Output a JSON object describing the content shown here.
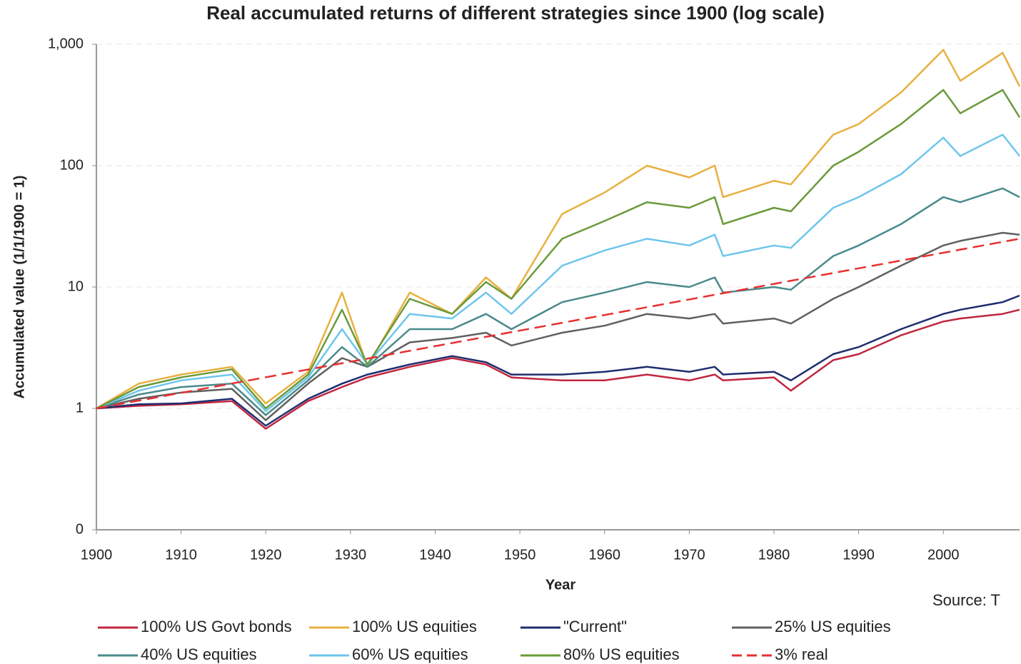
{
  "chart_data": {
    "type": "line",
    "title": "Real accumulated returns of different strategies since 1900 (log scale)",
    "x_label": "Year",
    "y_label": "Accumulated value (1/1/1900 = 1)",
    "source": "Source: T",
    "log_scale": true,
    "grid": true,
    "legend": "bottom",
    "xlim": [
      1900,
      2009
    ],
    "xticks": [
      1900,
      1910,
      1920,
      1930,
      1940,
      1950,
      1960,
      1970,
      1980,
      1990,
      2000
    ],
    "ylim": [
      0.1,
      1000
    ],
    "yticks": [
      {
        "value": 0.1,
        "label": "0"
      },
      1,
      10,
      100,
      {
        "value": 1000,
        "label": "1,000"
      }
    ],
    "x": [
      1900,
      1905,
      1910,
      1916,
      1920,
      1925,
      1929,
      1932,
      1937,
      1942,
      1946,
      1949,
      1955,
      1960,
      1965,
      1970,
      1973,
      1974,
      1980,
      1982,
      1987,
      1990,
      1995,
      2000,
      2002,
      2007,
      2009
    ],
    "series": [
      {
        "name": "100% US Govt bonds",
        "color": "#c0273f",
        "values": [
          1,
          1.05,
          1.08,
          1.15,
          0.68,
          1.15,
          1.5,
          1.8,
          2.2,
          2.6,
          2.3,
          1.8,
          1.7,
          1.7,
          1.9,
          1.7,
          1.9,
          1.7,
          1.8,
          1.4,
          2.5,
          2.8,
          4,
          5.2,
          5.5,
          6,
          6.5
        ]
      },
      {
        "name": "100% US equities",
        "color": "#e8b040",
        "values": [
          1,
          1.6,
          1.9,
          2.2,
          1.1,
          2.0,
          9,
          2.2,
          9,
          6,
          12,
          8,
          40,
          60,
          100,
          80,
          100,
          55,
          75,
          70,
          180,
          220,
          400,
          900,
          500,
          850,
          450
        ]
      },
      {
        "name": "\"Current\"",
        "color": "#1f2d6e",
        "values": [
          1,
          1.08,
          1.1,
          1.2,
          0.72,
          1.2,
          1.6,
          1.9,
          2.3,
          2.7,
          2.4,
          1.9,
          1.9,
          2.0,
          2.2,
          2.0,
          2.2,
          1.9,
          2.0,
          1.7,
          2.8,
          3.2,
          4.5,
          6,
          6.5,
          7.5,
          8.5
        ]
      },
      {
        "name": "25% US equities",
        "color": "#606060",
        "values": [
          1,
          1.2,
          1.35,
          1.45,
          0.8,
          1.6,
          2.6,
          2.2,
          3.5,
          3.8,
          4.2,
          3.3,
          4.2,
          4.8,
          6,
          5.5,
          6,
          5,
          5.5,
          5,
          8,
          10,
          15,
          22,
          24,
          28,
          27
        ]
      },
      {
        "name": "40% US equities",
        "color": "#4a8a8a",
        "values": [
          1,
          1.3,
          1.5,
          1.6,
          0.88,
          1.7,
          3.2,
          2.2,
          4.5,
          4.5,
          6,
          4.5,
          7.5,
          9,
          11,
          10,
          12,
          9,
          10,
          9.5,
          18,
          22,
          33,
          55,
          50,
          65,
          55
        ]
      },
      {
        "name": "60% US equities",
        "color": "#6ec6ec",
        "values": [
          1,
          1.4,
          1.7,
          1.9,
          0.95,
          1.8,
          4.5,
          2.3,
          6,
          5.5,
          9,
          6,
          15,
          20,
          25,
          22,
          27,
          18,
          22,
          21,
          45,
          55,
          85,
          170,
          120,
          180,
          120
        ]
      },
      {
        "name": "80% US equities",
        "color": "#6a9a3a",
        "values": [
          1,
          1.5,
          1.8,
          2.1,
          1.0,
          1.9,
          6.5,
          2.3,
          8,
          6,
          11,
          8,
          25,
          35,
          50,
          45,
          55,
          33,
          45,
          42,
          100,
          130,
          220,
          420,
          270,
          420,
          250
        ]
      },
      {
        "name": "3% real",
        "color": "#e83030",
        "dash": "dashed",
        "x": [
          1900,
          2009
        ],
        "values": [
          1,
          25
        ]
      }
    ]
  }
}
